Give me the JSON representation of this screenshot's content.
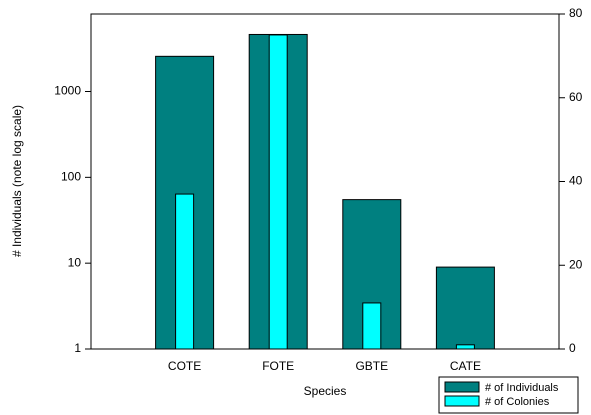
{
  "chart_data": {
    "type": "bar",
    "x_label": "Species",
    "y_label": "# Individuals (note log scale)",
    "categories": [
      "COTE",
      "FOTE",
      "GBTE",
      "CATE"
    ],
    "series": [
      {
        "name": "# of Individuals",
        "color": "#008080",
        "values": [
          2570,
          4620,
          55,
          9
        ]
      },
      {
        "name": "# of Colonies",
        "color": "#00ffff",
        "axis": "y2",
        "values": [
          37,
          75,
          11,
          1
        ]
      }
    ],
    "ylim": [
      1,
      8000
    ],
    "yticks": [
      1,
      10,
      100,
      1000
    ],
    "y_log": true,
    "y2lim": [
      0,
      80
    ],
    "y2ticks": [
      0,
      20,
      40,
      60,
      80
    ],
    "legend": "bottom-right"
  }
}
